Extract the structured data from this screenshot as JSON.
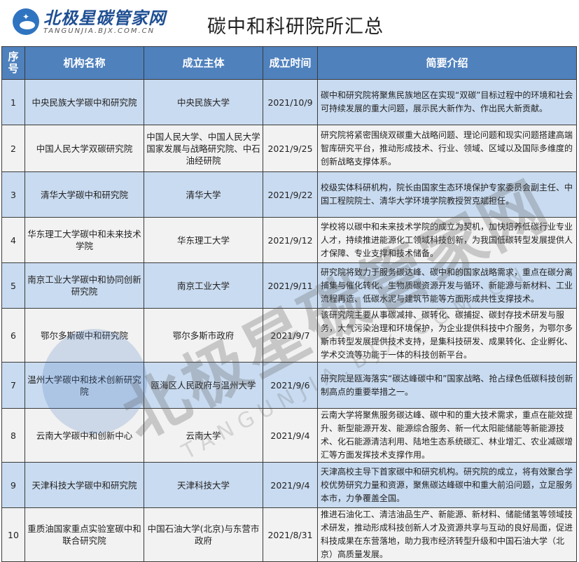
{
  "header": {
    "logo_cn": "北极星碳管家网",
    "logo_en": "TANGUNJIA.BJX.COM.CN",
    "title": "碳中和科研院所汇总"
  },
  "table": {
    "columns": [
      "序号",
      "机构名称",
      "成立主体",
      "成立时间",
      "简要介绍"
    ],
    "rows": [
      {
        "no": "1",
        "name": "中央民族大学碳中和研究院",
        "founder": "中央民族大学",
        "date": "2021/10/9",
        "desc": "碳中和研究院将聚焦民族地区在实现“双碳”目标过程中的环境和社会可持续发展的重大问题，展示民大新作为、作出民大新贡献。"
      },
      {
        "no": "2",
        "name": "中国人民大学双碳研究院",
        "founder": "中国人民大学、中国人民大学国家发展与战略研究院、中石油经研院",
        "date": "2021/9/25",
        "desc": "研究院将紧密围绕双碳重大战略问题、理论问题和现实问题搭建高端智库研究平台，推动形成技术、行业、领域、区域以及国际多维度的创新战略支撑体系。"
      },
      {
        "no": "3",
        "name": "清华大学碳中和研究院",
        "founder": "清华大学",
        "date": "2021/9/22",
        "desc": "校级实体科研机构，院长由国家生态环境保护专家委员会副主任、中国工程院院士、清华大学环境学院教授贺克斌担任。"
      },
      {
        "no": "4",
        "name": "华东理工大学碳中和未来技术学院",
        "founder": "华东理工大学",
        "date": "2021/9/12",
        "desc": "学校将以碳中和未来技术学院的成立为契机，加快培养低碳行业专业人才，持续推进能源化工领域科技创新，为我国低碳转型发展提供人才保障、专业支撑和技术储备。"
      },
      {
        "no": "5",
        "name": "南京工业大学碳中和协同创新研究院",
        "founder": "南京工业大学",
        "date": "2021/9/11",
        "desc": "研究院将致力于服务碳达峰、碳中和的国家战略需求，重点在碳分离捕集与催化转化、生物质碳资源开发与循环、新能源与新材料、工业流程再造、低碳水泥与建筑节能等方面形成共性支撑技术。"
      },
      {
        "no": "6",
        "name": "鄂尔多斯碳中和研究院",
        "founder": "鄂尔多斯市政府",
        "date": "2021/9/7",
        "desc": "该研究院主要从事碳减排、碳转化、碳捕捉、碳封存技术研发与服务，大气污染治理和环境保护，为企业提供科技中介服务，为鄂尔多斯市转型发展提供技术支持，是集科技研发、成果转化、企业孵化、学术交流等功能于一体的科技创新平台。"
      },
      {
        "no": "7",
        "name": "温州大学碳中和技术创新研究院",
        "founder": "瓯海区人民政府与温州大学",
        "date": "2021/9/6",
        "desc": "研究院是瓯海落实“碳达峰碳中和”国家战略、抢占绿色低碳科技创新制高点的重要举措之一。"
      },
      {
        "no": "8",
        "name": "云南大学碳中和创新中心",
        "founder": "云南大学",
        "date": "2021/9/4",
        "desc": "云南大学将聚焦服务碳达峰、碳中和的重大技术需求，重点在能效提升、新型能源开发、能源综合服务、新一代太阳能储能等新能源技术、化石能源清洁利用、陆地生态系统碳汇、林业增汇、农业减碳增汇等方面发挥技术支撑作用。"
      },
      {
        "no": "9",
        "name": "天津科技大学碳中和研究院",
        "founder": "天津科技大学",
        "date": "2021/9/4",
        "desc": "天津高校主导下首家碳中和研究机构。研究院的成立，将有效聚合学校优势研究力量和资源，聚焦碳达峰碳中和重大前沿问题，立足服务本市，力争覆盖全国。"
      },
      {
        "no": "10",
        "name": "重质油国家重点实验室碳中和联合研究院",
        "founder": "中国石油大学(北京)与东营市政府",
        "date": "2021/8/31",
        "desc": "推进石油化工、清洁油品生产、新能源、新材料、储能储氢等领域技术研发，推动形成科技创新人才及资源共享与互动的良好局面，促进科技成果在东营落地，助力我市经济转型升级和中国石油大学（北京）高质量发展。"
      }
    ]
  },
  "watermark": {
    "cn": "北极星碳管家网",
    "en": "TANGUNJIA.BJX.COM.CN"
  },
  "colors": {
    "header_bg": "#4f81bd",
    "odd_row": "#c9dbf0",
    "even_row": "#f2f2f2"
  }
}
